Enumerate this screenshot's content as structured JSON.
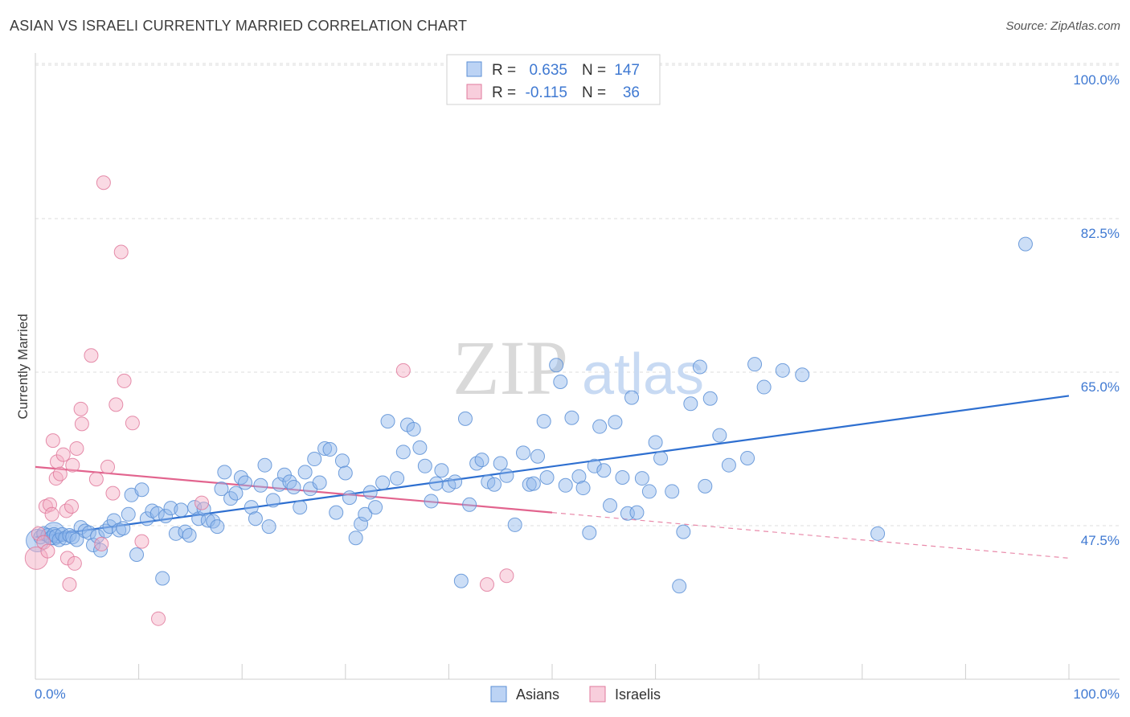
{
  "title": "ASIAN VS ISRAELI CURRENTLY MARRIED CORRELATION CHART",
  "source": "Source: ZipAtlas.com",
  "watermark": {
    "zip": "ZIP",
    "atlas": "atlas"
  },
  "chart_data": {
    "type": "scatter",
    "ylabel": "Currently Married",
    "xlim": [
      0,
      100
    ],
    "ylim": [
      31,
      102
    ],
    "x_ticks": [
      {
        "value": 0,
        "label": "0.0%"
      },
      {
        "value": 100,
        "label": "100.0%"
      }
    ],
    "y_ticks": [
      {
        "value": 47.5,
        "label": "47.5%"
      },
      {
        "value": 65.0,
        "label": "65.0%"
      },
      {
        "value": 82.5,
        "label": "82.5%"
      },
      {
        "value": 100.0,
        "label": "100.0%"
      }
    ],
    "grid": true,
    "legend_top": [
      {
        "series": "Asians",
        "r_label": "R =",
        "r": "0.635",
        "n_label": "N =",
        "n": "147"
      },
      {
        "series": "Israelis",
        "r_label": "R =",
        "r": "-0.115",
        "n_label": "N =",
        "n": "36"
      }
    ],
    "series": [
      {
        "name": "Asians",
        "color": "#8fb6ec",
        "stroke": "#5b8fd6",
        "line_color": "#2e6fd0",
        "trend": {
          "x0": 0,
          "y0": 46.2,
          "x1": 100,
          "y1": 62.3
        },
        "points": [
          [
            0.5,
            46.2
          ],
          [
            0.8,
            46.6
          ],
          [
            1.2,
            46.4
          ],
          [
            1.5,
            46.1
          ],
          [
            1.8,
            46.5
          ],
          [
            2.0,
            46.3
          ],
          [
            2.3,
            45.9
          ],
          [
            2.6,
            46.5
          ],
          [
            2.9,
            46.1
          ],
          [
            3.3,
            46.4
          ],
          [
            3.6,
            46.2
          ],
          [
            4.0,
            45.9
          ],
          [
            4.4,
            47.3
          ],
          [
            4.8,
            46.9
          ],
          [
            5.2,
            46.7
          ],
          [
            5.6,
            45.3
          ],
          [
            6.0,
            46.3
          ],
          [
            6.3,
            44.7
          ],
          [
            6.8,
            46.9
          ],
          [
            7.2,
            47.4
          ],
          [
            7.6,
            48.1
          ],
          [
            8.1,
            47.0
          ],
          [
            8.5,
            47.2
          ],
          [
            9.0,
            48.8
          ],
          [
            9.3,
            51.0
          ],
          [
            9.8,
            44.2
          ],
          [
            10.3,
            51.6
          ],
          [
            10.8,
            48.3
          ],
          [
            11.3,
            49.2
          ],
          [
            11.8,
            48.9
          ],
          [
            12.3,
            41.5
          ],
          [
            12.6,
            48.6
          ],
          [
            13.1,
            49.5
          ],
          [
            13.6,
            46.6
          ],
          [
            14.1,
            49.3
          ],
          [
            14.5,
            46.8
          ],
          [
            14.9,
            46.4
          ],
          [
            15.4,
            49.6
          ],
          [
            15.8,
            48.3
          ],
          [
            16.3,
            49.4
          ],
          [
            16.7,
            48.1
          ],
          [
            17.2,
            48.0
          ],
          [
            17.6,
            47.4
          ],
          [
            18.0,
            51.7
          ],
          [
            18.3,
            53.6
          ],
          [
            18.9,
            50.6
          ],
          [
            19.4,
            51.2
          ],
          [
            19.9,
            53.0
          ],
          [
            20.3,
            52.4
          ],
          [
            20.9,
            49.6
          ],
          [
            21.3,
            48.3
          ],
          [
            21.8,
            52.1
          ],
          [
            22.2,
            54.4
          ],
          [
            22.6,
            47.4
          ],
          [
            23.0,
            50.4
          ],
          [
            23.6,
            52.2
          ],
          [
            24.1,
            53.3
          ],
          [
            24.6,
            52.5
          ],
          [
            25.0,
            51.9
          ],
          [
            25.6,
            49.6
          ],
          [
            26.1,
            53.6
          ],
          [
            26.6,
            51.7
          ],
          [
            27.0,
            55.1
          ],
          [
            27.5,
            52.4
          ],
          [
            28.0,
            56.3
          ],
          [
            28.5,
            56.2
          ],
          [
            29.1,
            49.0
          ],
          [
            29.7,
            54.9
          ],
          [
            30.0,
            53.5
          ],
          [
            30.4,
            50.7
          ],
          [
            31.0,
            46.1
          ],
          [
            31.5,
            47.7
          ],
          [
            31.9,
            48.8
          ],
          [
            32.4,
            51.3
          ],
          [
            32.9,
            49.6
          ],
          [
            33.6,
            52.4
          ],
          [
            34.1,
            59.4
          ],
          [
            35.0,
            52.9
          ],
          [
            35.6,
            55.9
          ],
          [
            36.0,
            59.0
          ],
          [
            36.6,
            58.5
          ],
          [
            37.2,
            56.4
          ],
          [
            37.7,
            54.3
          ],
          [
            38.3,
            50.3
          ],
          [
            38.8,
            52.3
          ],
          [
            39.3,
            53.8
          ],
          [
            40.0,
            52.1
          ],
          [
            40.6,
            52.5
          ],
          [
            41.2,
            41.2
          ],
          [
            41.6,
            59.7
          ],
          [
            42.0,
            49.9
          ],
          [
            42.7,
            54.6
          ],
          [
            43.2,
            55.0
          ],
          [
            43.8,
            52.5
          ],
          [
            44.4,
            52.2
          ],
          [
            45.0,
            54.6
          ],
          [
            45.6,
            53.2
          ],
          [
            46.4,
            47.6
          ],
          [
            47.2,
            55.8
          ],
          [
            47.8,
            52.2
          ],
          [
            48.2,
            52.3
          ],
          [
            48.6,
            55.4
          ],
          [
            49.2,
            59.4
          ],
          [
            49.5,
            53.0
          ],
          [
            50.4,
            65.8
          ],
          [
            50.8,
            63.9
          ],
          [
            51.3,
            52.1
          ],
          [
            51.9,
            59.8
          ],
          [
            52.6,
            53.1
          ],
          [
            53.0,
            51.8
          ],
          [
            53.6,
            46.7
          ],
          [
            54.1,
            54.3
          ],
          [
            54.6,
            58.8
          ],
          [
            55.0,
            53.8
          ],
          [
            55.6,
            49.8
          ],
          [
            56.1,
            59.3
          ],
          [
            56.8,
            53.0
          ],
          [
            57.3,
            48.9
          ],
          [
            57.7,
            62.1
          ],
          [
            58.2,
            49.0
          ],
          [
            58.7,
            52.9
          ],
          [
            59.4,
            51.4
          ],
          [
            60.0,
            57.0
          ],
          [
            60.5,
            55.2
          ],
          [
            61.6,
            51.4
          ],
          [
            62.3,
            40.6
          ],
          [
            62.7,
            46.8
          ],
          [
            63.4,
            61.4
          ],
          [
            64.3,
            65.6
          ],
          [
            64.8,
            52.0
          ],
          [
            65.3,
            62.0
          ],
          [
            66.2,
            57.8
          ],
          [
            67.1,
            54.4
          ],
          [
            68.9,
            55.2
          ],
          [
            69.6,
            65.9
          ],
          [
            70.5,
            63.3
          ],
          [
            72.3,
            65.2
          ],
          [
            74.2,
            64.7
          ],
          [
            81.5,
            46.6
          ],
          [
            95.8,
            79.6
          ]
        ],
        "big_points": [
          [
            1.8,
            46.6
          ],
          [
            0.2,
            45.8
          ]
        ]
      },
      {
        "name": "Israelis",
        "color": "#f4aec4",
        "stroke": "#e07a9c",
        "line_color": "#e2648e",
        "trend": {
          "x0": 0,
          "y0": 54.2,
          "x1": 50,
          "y1": 49.0
        },
        "trend_dashed": {
          "x0": 50,
          "y0": 49.0,
          "x1": 100,
          "y1": 43.8
        },
        "points": [
          [
            0.3,
            46.6
          ],
          [
            0.8,
            45.6
          ],
          [
            1.0,
            49.7
          ],
          [
            1.2,
            44.6
          ],
          [
            1.4,
            49.9
          ],
          [
            1.6,
            48.8
          ],
          [
            1.7,
            57.2
          ],
          [
            2.0,
            52.9
          ],
          [
            2.1,
            54.8
          ],
          [
            2.4,
            53.4
          ],
          [
            2.7,
            55.6
          ],
          [
            3.0,
            49.2
          ],
          [
            3.1,
            43.8
          ],
          [
            3.3,
            40.8
          ],
          [
            3.5,
            49.7
          ],
          [
            3.6,
            54.4
          ],
          [
            3.8,
            43.2
          ],
          [
            4.0,
            56.3
          ],
          [
            4.4,
            60.8
          ],
          [
            4.5,
            59.1
          ],
          [
            5.4,
            66.9
          ],
          [
            5.9,
            52.8
          ],
          [
            6.4,
            45.4
          ],
          [
            6.6,
            86.6
          ],
          [
            7.0,
            54.2
          ],
          [
            7.5,
            51.2
          ],
          [
            7.8,
            61.3
          ],
          [
            8.3,
            78.7
          ],
          [
            8.6,
            64.0
          ],
          [
            9.4,
            59.2
          ],
          [
            10.3,
            45.7
          ],
          [
            11.9,
            36.9
          ],
          [
            16.1,
            50.1
          ],
          [
            35.6,
            65.2
          ],
          [
            43.7,
            40.8
          ],
          [
            45.6,
            41.8
          ]
        ],
        "big_points": [
          [
            0.1,
            43.8
          ]
        ]
      }
    ]
  }
}
